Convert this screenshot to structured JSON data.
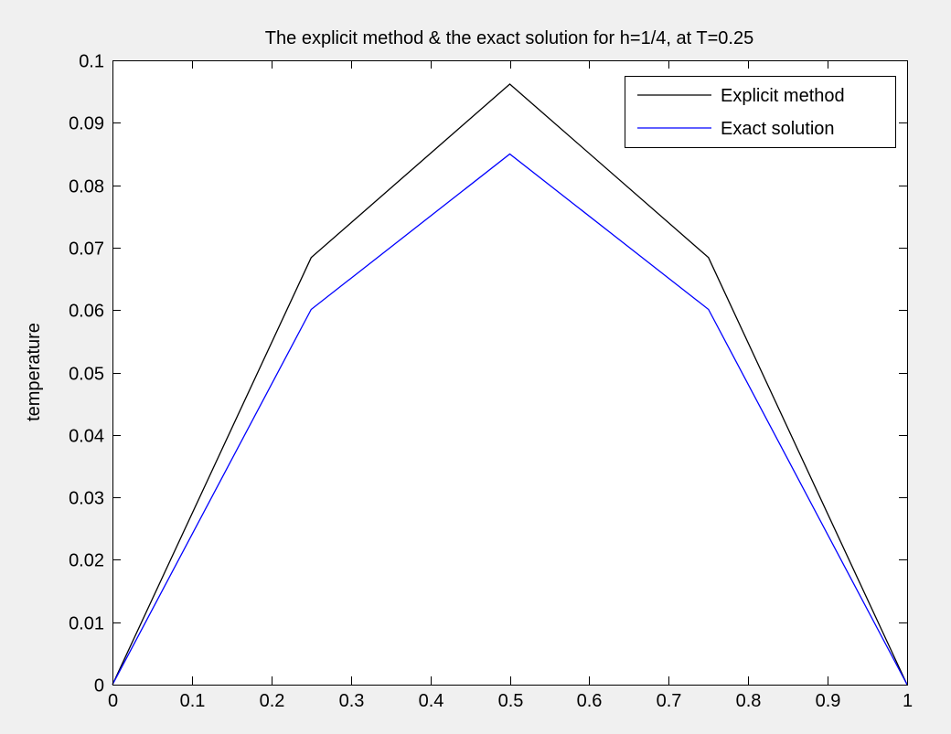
{
  "chart_data": {
    "type": "line",
    "title": "The explicit method & the exact solution for h=1/4, at T=0.25",
    "xlabel": "",
    "ylabel": "temperature",
    "xlim": [
      0,
      1
    ],
    "ylim": [
      0,
      0.1
    ],
    "xticks": [
      0,
      0.1,
      0.2,
      0.3,
      0.4,
      0.5,
      0.6,
      0.7,
      0.8,
      0.9,
      1
    ],
    "xtick_labels": [
      "0",
      "0.1",
      "0.2",
      "0.3",
      "0.4",
      "0.5",
      "0.6",
      "0.7",
      "0.8",
      "0.9",
      "1"
    ],
    "yticks": [
      0,
      0.01,
      0.02,
      0.03,
      0.04,
      0.05,
      0.06,
      0.07,
      0.08,
      0.09,
      0.1
    ],
    "ytick_labels": [
      "0",
      "0.01",
      "0.02",
      "0.03",
      "0.04",
      "0.05",
      "0.06",
      "0.07",
      "0.08",
      "0.09",
      "0.1"
    ],
    "grid": false,
    "legend_position": "top-right",
    "series": [
      {
        "name": "Explicit method",
        "color": "#000000",
        "x": [
          0,
          0.25,
          0.5,
          0.75,
          1
        ],
        "y": [
          0,
          0.0684,
          0.0962,
          0.0684,
          0
        ]
      },
      {
        "name": "Exact solution",
        "color": "#0000ff",
        "x": [
          0,
          0.25,
          0.5,
          0.75,
          1
        ],
        "y": [
          0,
          0.0601,
          0.085,
          0.0601,
          0
        ]
      }
    ]
  }
}
